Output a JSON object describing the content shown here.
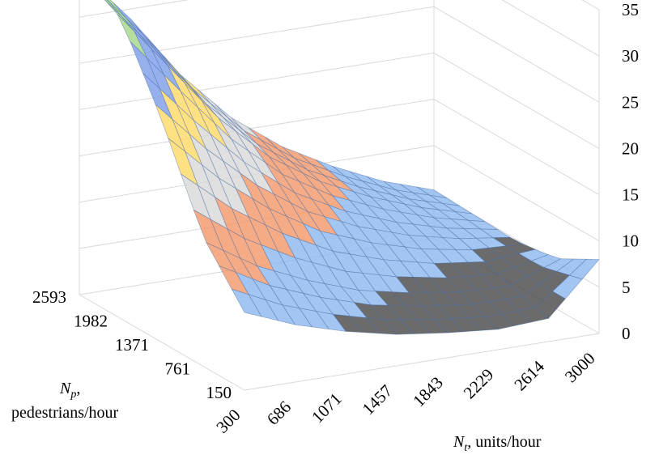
{
  "chart_data": {
    "type": "surface",
    "title": "",
    "x_axis": {
      "label_main": "N",
      "label_sub": "t",
      "label_rest": ", units/hour",
      "ticks": [
        "300",
        "686",
        "1071",
        "1457",
        "1843",
        "2229",
        "2614",
        "3000"
      ],
      "range": [
        300,
        3000
      ]
    },
    "y_axis": {
      "label_main": "N",
      "label_sub": "p",
      "label_rest": ",",
      "label_line2": "pedestrians/hour",
      "ticks": [
        "150",
        "761",
        "1371",
        "1982",
        "2593"
      ],
      "range": [
        150,
        2593
      ]
    },
    "z_axis": {
      "ticks": [
        "0",
        "5",
        "10",
        "15",
        "20",
        "25",
        "30",
        "35"
      ],
      "range": [
        0,
        35
      ]
    },
    "surface_values": [
      [
        8.4,
        6.2,
        4.6,
        3.4,
        2.7,
        2.2,
        2.5,
        8.0
      ],
      [
        14.0,
        10.5,
        8.0,
        6.0,
        4.8,
        4.0,
        3.8,
        5.5
      ],
      [
        24.0,
        18.5,
        14.0,
        10.5,
        8.2,
        6.5,
        5.4,
        4.8
      ],
      [
        32.5,
        26.0,
        19.5,
        14.5,
        11.0,
        8.5,
        6.5,
        5.0
      ],
      [
        35.0,
        29.0,
        22.0,
        16.5,
        12.5,
        9.5,
        7.0,
        5.2
      ]
    ],
    "color_bands": [
      {
        "range": "0-5",
        "color": "#4a4a4a"
      },
      {
        "range": "5-10",
        "color": "#8fb8ee"
      },
      {
        "range": "10-15",
        "color": "#f39a6b"
      },
      {
        "range": "15-20",
        "color": "#d9d9d9"
      },
      {
        "range": "20-25",
        "color": "#ffd966"
      },
      {
        "range": "25-30",
        "color": "#7f9fea"
      },
      {
        "range": "30-35",
        "color": "#a6d78a"
      },
      {
        "range": "35-40",
        "color": "#8aa4dc"
      }
    ],
    "grid": true
  }
}
